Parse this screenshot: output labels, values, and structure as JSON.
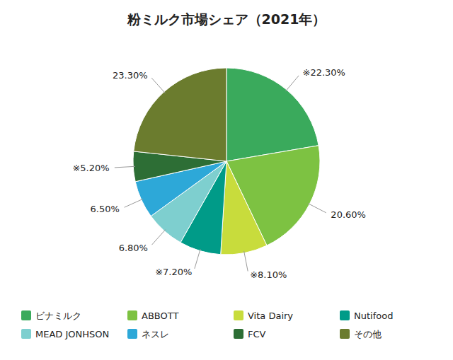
{
  "chart_data": {
    "type": "pie",
    "title": "粉ミルク市場シェア（2021年）",
    "categories": [
      "ビナミルク",
      "ABBOTT",
      "Vita Dairy",
      "Nutifood",
      "MEAD JONHSON",
      "ネスレ",
      "FCV",
      "その他"
    ],
    "values": [
      22.3,
      20.6,
      8.1,
      7.2,
      6.8,
      6.5,
      5.2,
      23.3
    ],
    "value_labels": [
      "※22.30%",
      "20.60%",
      "※8.10%",
      "※7.20%",
      "6.80%",
      "6.50%",
      "※5.20%",
      "23.30%"
    ],
    "colors": [
      "#3aaa5c",
      "#7dc242",
      "#c8dc3c",
      "#009b88",
      "#7ecfcf",
      "#2da8d8",
      "#2d6e35",
      "#6b7c2e"
    ],
    "data_labels": true,
    "legend": "bottom"
  }
}
